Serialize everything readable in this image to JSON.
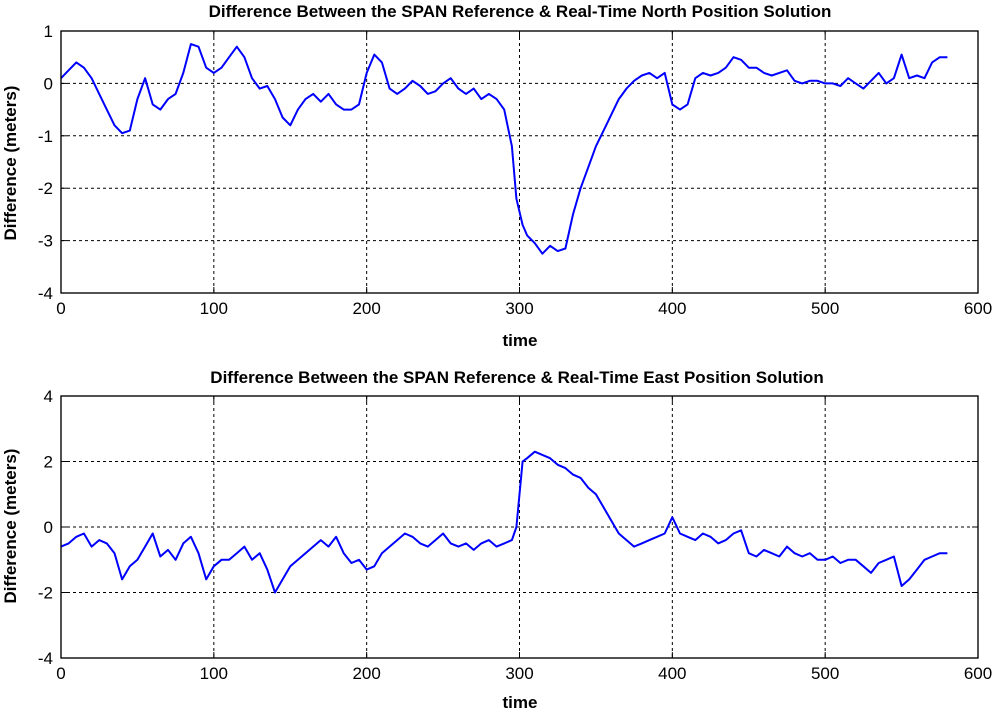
{
  "chart_data": [
    {
      "type": "line",
      "title": "Difference Between the SPAN Reference & Real-Time North Position Solution",
      "xlabel": "time",
      "ylabel": "Difference (meters)",
      "xlim": [
        0,
        600
      ],
      "ylim": [
        -4,
        1
      ],
      "xticks": [
        0,
        100,
        200,
        300,
        400,
        500,
        600
      ],
      "yticks": [
        1,
        0,
        -1,
        -2,
        -3,
        -4
      ],
      "grid": true,
      "series": [
        {
          "color": "#0000ff",
          "x": [
            0,
            5,
            10,
            15,
            20,
            25,
            30,
            35,
            40,
            45,
            50,
            55,
            60,
            65,
            70,
            75,
            80,
            85,
            90,
            95,
            100,
            105,
            110,
            115,
            120,
            125,
            130,
            135,
            140,
            145,
            150,
            155,
            160,
            165,
            170,
            175,
            180,
            185,
            190,
            195,
            200,
            205,
            210,
            215,
            220,
            225,
            230,
            235,
            240,
            245,
            250,
            255,
            260,
            265,
            270,
            275,
            280,
            285,
            290,
            295,
            298,
            302,
            305,
            310,
            315,
            320,
            325,
            330,
            335,
            340,
            345,
            350,
            355,
            360,
            365,
            370,
            375,
            380,
            385,
            390,
            395,
            400,
            405,
            410,
            415,
            420,
            425,
            430,
            435,
            440,
            445,
            450,
            455,
            460,
            465,
            470,
            475,
            480,
            485,
            490,
            495,
            500,
            505,
            510,
            515,
            520,
            525,
            530,
            535,
            540,
            545,
            550,
            555,
            560,
            565,
            570,
            575,
            580
          ],
          "y": [
            0.1,
            0.25,
            0.4,
            0.3,
            0.1,
            -0.2,
            -0.5,
            -0.8,
            -0.95,
            -0.9,
            -0.3,
            0.1,
            -0.4,
            -0.5,
            -0.3,
            -0.2,
            0.2,
            0.75,
            0.7,
            0.3,
            0.2,
            0.3,
            0.5,
            0.7,
            0.5,
            0.1,
            -0.1,
            -0.05,
            -0.3,
            -0.65,
            -0.8,
            -0.5,
            -0.3,
            -0.2,
            -0.35,
            -0.2,
            -0.4,
            -0.5,
            -0.5,
            -0.4,
            0.2,
            0.55,
            0.4,
            -0.1,
            -0.2,
            -0.1,
            0.05,
            -0.05,
            -0.2,
            -0.15,
            0.0,
            0.1,
            -0.1,
            -0.2,
            -0.1,
            -0.3,
            -0.2,
            -0.3,
            -0.5,
            -1.2,
            -2.2,
            -2.7,
            -2.9,
            -3.05,
            -3.25,
            -3.1,
            -3.2,
            -3.15,
            -2.5,
            -2.0,
            -1.6,
            -1.2,
            -0.9,
            -0.6,
            -0.3,
            -0.1,
            0.05,
            0.15,
            0.2,
            0.1,
            0.2,
            -0.4,
            -0.5,
            -0.4,
            0.1,
            0.2,
            0.15,
            0.2,
            0.3,
            0.5,
            0.45,
            0.3,
            0.3,
            0.2,
            0.15,
            0.2,
            0.25,
            0.05,
            0.0,
            0.05,
            0.05,
            0.0,
            0.0,
            -0.05,
            0.1,
            0.0,
            -0.1,
            0.05,
            0.2,
            0.0,
            0.1,
            0.55,
            0.1,
            0.15,
            0.1,
            0.4,
            0.5,
            0.5
          ]
        }
      ]
    },
    {
      "type": "line",
      "title": "Difference Between the SPAN Reference & Real-Time East Position Solution",
      "xlabel": "time",
      "ylabel": "Difference (meters)",
      "xlim": [
        0,
        600
      ],
      "ylim": [
        -4,
        4
      ],
      "xticks": [
        0,
        100,
        200,
        300,
        400,
        500,
        600
      ],
      "yticks": [
        4,
        2,
        0,
        -2,
        -4
      ],
      "grid": true,
      "series": [
        {
          "color": "#0000ff",
          "x": [
            0,
            5,
            10,
            15,
            20,
            25,
            30,
            35,
            40,
            45,
            50,
            55,
            60,
            65,
            70,
            75,
            80,
            85,
            90,
            95,
            100,
            105,
            110,
            115,
            120,
            125,
            130,
            135,
            140,
            145,
            150,
            155,
            160,
            165,
            170,
            175,
            180,
            185,
            190,
            195,
            200,
            205,
            210,
            215,
            220,
            225,
            230,
            235,
            240,
            245,
            250,
            255,
            260,
            265,
            270,
            275,
            280,
            285,
            290,
            295,
            298,
            302,
            305,
            310,
            315,
            320,
            325,
            330,
            335,
            340,
            345,
            350,
            355,
            360,
            365,
            370,
            375,
            380,
            385,
            390,
            395,
            400,
            405,
            410,
            415,
            420,
            425,
            430,
            435,
            440,
            445,
            450,
            455,
            460,
            465,
            470,
            475,
            480,
            485,
            490,
            495,
            500,
            505,
            510,
            515,
            520,
            525,
            530,
            535,
            540,
            545,
            550,
            555,
            560,
            565,
            570,
            575,
            580
          ],
          "y": [
            -0.6,
            -0.5,
            -0.3,
            -0.2,
            -0.6,
            -0.4,
            -0.5,
            -0.8,
            -1.6,
            -1.2,
            -1.0,
            -0.6,
            -0.2,
            -0.9,
            -0.7,
            -1.0,
            -0.5,
            -0.3,
            -0.8,
            -1.6,
            -1.2,
            -1.0,
            -1.0,
            -0.8,
            -0.6,
            -1.0,
            -0.8,
            -1.3,
            -2.0,
            -1.6,
            -1.2,
            -1.0,
            -0.8,
            -0.6,
            -0.4,
            -0.6,
            -0.3,
            -0.8,
            -1.1,
            -1.0,
            -1.3,
            -1.2,
            -0.8,
            -0.6,
            -0.4,
            -0.2,
            -0.3,
            -0.5,
            -0.6,
            -0.4,
            -0.2,
            -0.5,
            -0.6,
            -0.5,
            -0.7,
            -0.5,
            -0.4,
            -0.6,
            -0.5,
            -0.4,
            0.0,
            2.0,
            2.1,
            2.3,
            2.2,
            2.1,
            1.9,
            1.8,
            1.6,
            1.5,
            1.2,
            1.0,
            0.6,
            0.2,
            -0.2,
            -0.4,
            -0.6,
            -0.5,
            -0.4,
            -0.3,
            -0.2,
            0.3,
            -0.2,
            -0.3,
            -0.4,
            -0.2,
            -0.3,
            -0.5,
            -0.4,
            -0.2,
            -0.1,
            -0.8,
            -0.9,
            -0.7,
            -0.8,
            -0.9,
            -0.6,
            -0.8,
            -0.9,
            -0.8,
            -1.0,
            -1.0,
            -0.9,
            -1.1,
            -1.0,
            -1.0,
            -1.2,
            -1.4,
            -1.1,
            -1.0,
            -0.9,
            -1.8,
            -1.6,
            -1.3,
            -1.0,
            -0.9,
            -0.8,
            -0.8
          ]
        }
      ]
    }
  ]
}
